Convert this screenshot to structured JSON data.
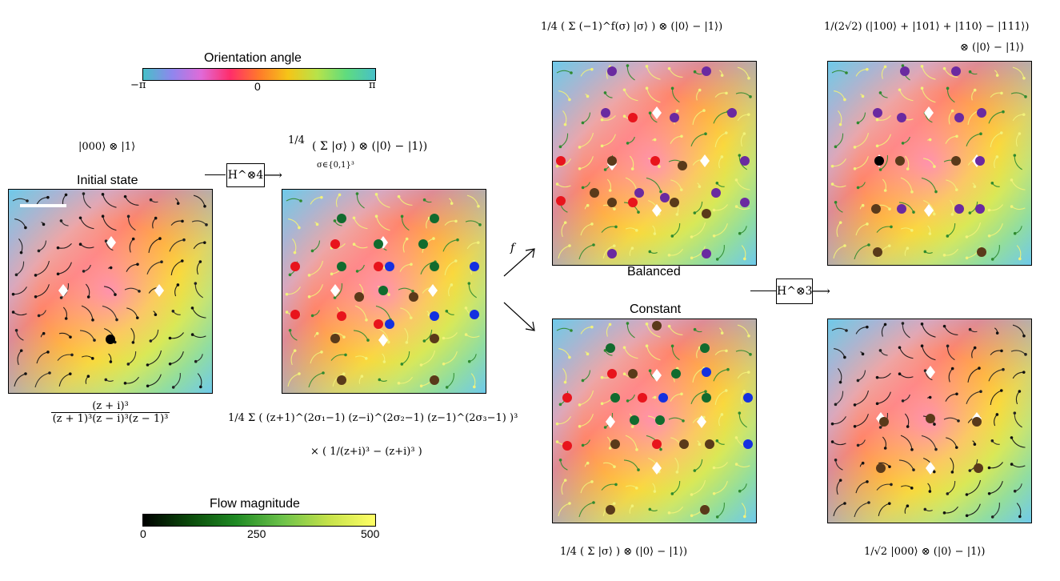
{
  "colorbars": {
    "orientation": {
      "title": "Orientation angle",
      "ticks": [
        "−π",
        "0",
        "π"
      ],
      "stops": [
        "#47c0c8",
        "#8f86ee",
        "#e06ad8",
        "#ff2d6a",
        "#ff7a2a",
        "#f5c518",
        "#b7e34a",
        "#5fdc7e",
        "#47c0c8"
      ]
    },
    "magnitude": {
      "title": "Flow magnitude",
      "ticks": [
        "0",
        "250",
        "500"
      ],
      "stops": [
        "#000000",
        "#0b4a0b",
        "#1f8a24",
        "#6cc24a",
        "#c6e24a",
        "#ffff66"
      ]
    }
  },
  "states": {
    "initial": {
      "top_expr": "|000⟩ ⊗ |1⟩",
      "title": "Initial state",
      "bottom_num": "(z + i)³",
      "bottom_den": "(z + 1)³(z − i)³(z − 1)³"
    },
    "superposition": {
      "top_prefix": "1/4",
      "top_expr": "( Σ |σ⟩ ) ⊗ (|0⟩ − |1⟩)",
      "sum_sub": "σ∈{0,1}³",
      "bottom_line1": "1/4 Σ ( (z+1)^(2σ₁−1) (z−i)^(2σ₂−1) (z−1)^(2σ₃−1) )³",
      "bottom_line2": "× ( 1/(z+i)³ − (z+i)³ )"
    },
    "balanced": {
      "top_expr": "1/4 ( Σ (−1)^f(σ) |σ⟩ ) ⊗ (|0⟩ − |1⟩)",
      "label": "Balanced"
    },
    "balanced_result": {
      "top_line1": "1/(2√2) (|100⟩ + |101⟩ + |110⟩ − |111⟩)",
      "top_line2": "⊗ (|0⟩ − |1⟩)"
    },
    "constant": {
      "label": "Constant",
      "bottom_expr": "1/4 ( Σ |σ⟩ ) ⊗ (|0⟩ − |1⟩)"
    },
    "constant_result": {
      "bottom_expr": "1/√2 |000⟩ ⊗ (|0⟩ − |1⟩)"
    }
  },
  "operators": {
    "h4": "H^⊗4",
    "h3": "H^⊗3",
    "f": "f"
  },
  "marker_colors": {
    "red": "#e8141c",
    "blue": "#1430e0",
    "green": "#116b2e",
    "brown": "#5a3a1a",
    "purple": "#6a2aa0",
    "black": "#000000",
    "white": "#ffffff"
  }
}
